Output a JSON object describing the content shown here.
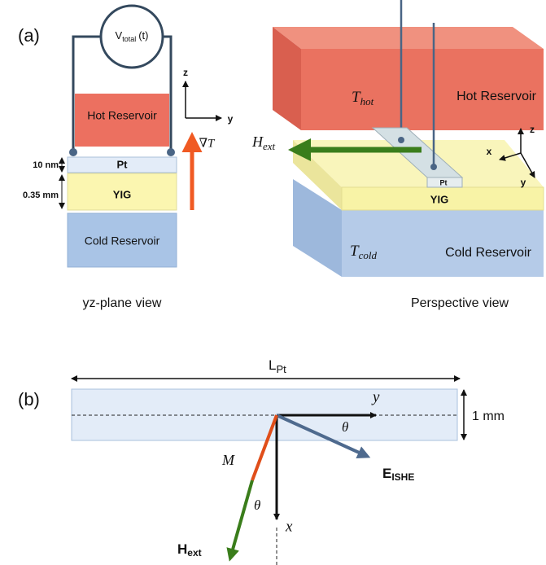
{
  "panel_a": {
    "label": "(a)",
    "yz_view": {
      "voltage": {
        "symbol": "V",
        "subscript": "total",
        "argument": "(t)"
      },
      "axis_z": "z",
      "axis_y": "y",
      "hot_reservoir": "Hot Reservoir",
      "gradient": "∇T",
      "pt_thickness": "10 nm",
      "pt": "Pt",
      "yig_thickness": "0.35 mm",
      "yig": "YIG",
      "cold_reservoir": "Cold Reservoir",
      "caption": "yz-plane view"
    },
    "perspective_view": {
      "t_hot": {
        "symbol": "T",
        "subscript": "hot"
      },
      "hot_reservoir": "Hot Reservoir",
      "h_ext": {
        "symbol": "H",
        "subscript": "ext"
      },
      "axis_z": "z",
      "axis_x": "x",
      "axis_y": "y",
      "pt": "Pt",
      "yig": "YIG",
      "t_cold": {
        "symbol": "T",
        "subscript": "cold"
      },
      "cold_reservoir": "Cold Reservoir",
      "caption": "Perspective view"
    }
  },
  "panel_b": {
    "label": "(b)",
    "length": {
      "symbol": "L",
      "subscript": "Pt"
    },
    "axis_y": "y",
    "width": "1 mm",
    "angle_e": "θ",
    "e_ishe": {
      "symbol": "E",
      "subscript": "ISHE"
    },
    "magnetization": "M",
    "angle_h": "θ",
    "axis_x": "x",
    "h_ext": {
      "symbol": "H",
      "subscript": "ext"
    }
  }
}
